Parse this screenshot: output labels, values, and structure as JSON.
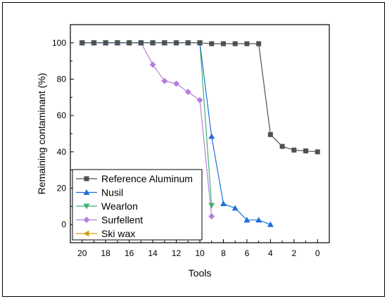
{
  "chart_data": {
    "type": "line",
    "xlabel": "Tools",
    "ylabel": "Remaining contaminant (%)",
    "xlim": [
      21,
      -1
    ],
    "ylim": [
      -10,
      110
    ],
    "x_ticks": [
      20,
      18,
      16,
      14,
      12,
      10,
      8,
      6,
      4,
      2,
      0
    ],
    "y_ticks": [
      0,
      20,
      40,
      60,
      80,
      100
    ],
    "grid": false,
    "legend_position": "bottom-left",
    "series": [
      {
        "name": "Reference Aluminum",
        "color": "#505050",
        "marker": "square",
        "x": [
          20,
          19,
          18,
          17,
          16,
          15,
          14,
          13,
          12,
          11,
          10,
          9,
          8,
          7,
          6,
          5,
          4,
          3,
          2,
          1,
          0
        ],
        "y": [
          100,
          100,
          100,
          100,
          100,
          100,
          100,
          100,
          100,
          100,
          100,
          99.5,
          99.5,
          99.5,
          99.5,
          99.5,
          49.5,
          43,
          41,
          40.5,
          40
        ]
      },
      {
        "name": "Nusil",
        "color": "#1f6fd6",
        "marker": "triangle-up",
        "x": [
          20,
          19,
          18,
          17,
          16,
          15,
          14,
          13,
          12,
          11,
          10,
          9,
          8,
          7,
          6,
          5,
          4
        ],
        "y": [
          100,
          100,
          100,
          100,
          100,
          100,
          100,
          100,
          100,
          100,
          100,
          48.5,
          11.5,
          9,
          2.5,
          2.5,
          0
        ]
      },
      {
        "name": "Wearlon",
        "color": "#3cb371",
        "marker": "triangle-down",
        "x": [
          20,
          19,
          18,
          17,
          16,
          15,
          14,
          13,
          12,
          11,
          10,
          9
        ],
        "y": [
          100,
          100,
          100,
          100,
          100,
          100,
          100,
          100,
          100,
          100,
          100,
          10.5
        ]
      },
      {
        "name": "Surfellent",
        "color": "#b57edc",
        "marker": "diamond",
        "x": [
          20,
          19,
          18,
          17,
          16,
          15,
          14,
          13,
          12,
          11,
          10,
          9
        ],
        "y": [
          100,
          100,
          100,
          100,
          100,
          100,
          88,
          79,
          77.5,
          73,
          68.5,
          4.5
        ]
      },
      {
        "name": "Ski wax",
        "color": "#d4a017",
        "marker": "triangle-left",
        "x": [],
        "y": []
      }
    ]
  }
}
